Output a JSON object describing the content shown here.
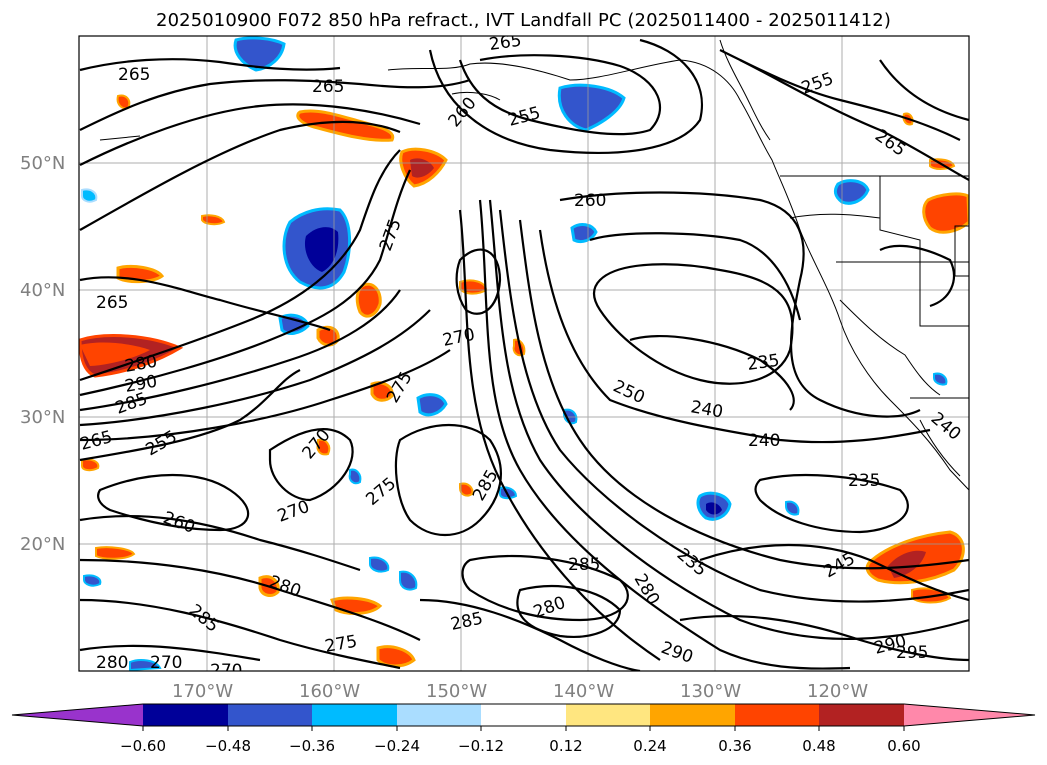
{
  "title": "2025010900 F072 850 hPa refract., IVT Landfall PC (2025011400 - 2025011412)",
  "latitude_labels": [
    "50°N",
    "40°N",
    "30°N",
    "20°N"
  ],
  "longitude_labels": [
    "170°W",
    "160°W",
    "150°W",
    "140°W",
    "130°W",
    "120°W"
  ],
  "colorbar": {
    "tick_labels": [
      "−0.60",
      "−0.48",
      "−0.36",
      "−0.24",
      "−0.12",
      "0.12",
      "0.24",
      "0.36",
      "0.48",
      "0.60"
    ],
    "colors": [
      "#9933cc",
      "#000099",
      "#3355cc",
      "#00bbff",
      "#aaddff",
      "#ffffff",
      "#ffe680",
      "#ffa500",
      "#ff4400",
      "#b22222",
      "#ff88aa"
    ]
  },
  "contour_labels": [
    "265",
    "265",
    "255",
    "260",
    "265",
    "255",
    "265",
    "275",
    "260",
    "265",
    "280",
    "270",
    "290",
    "285",
    "265",
    "255",
    "270",
    "235",
    "250",
    "240",
    "240",
    "275",
    "285",
    "235",
    "240",
    "260",
    "270",
    "275",
    "285",
    "280",
    "245",
    "235",
    "280",
    "285",
    "280",
    "285",
    "290",
    "290",
    "295",
    "275",
    "270",
    "270",
    "280"
  ],
  "colors": {
    "contour": "#000000",
    "grid": "#999999",
    "coast": "#000000"
  }
}
